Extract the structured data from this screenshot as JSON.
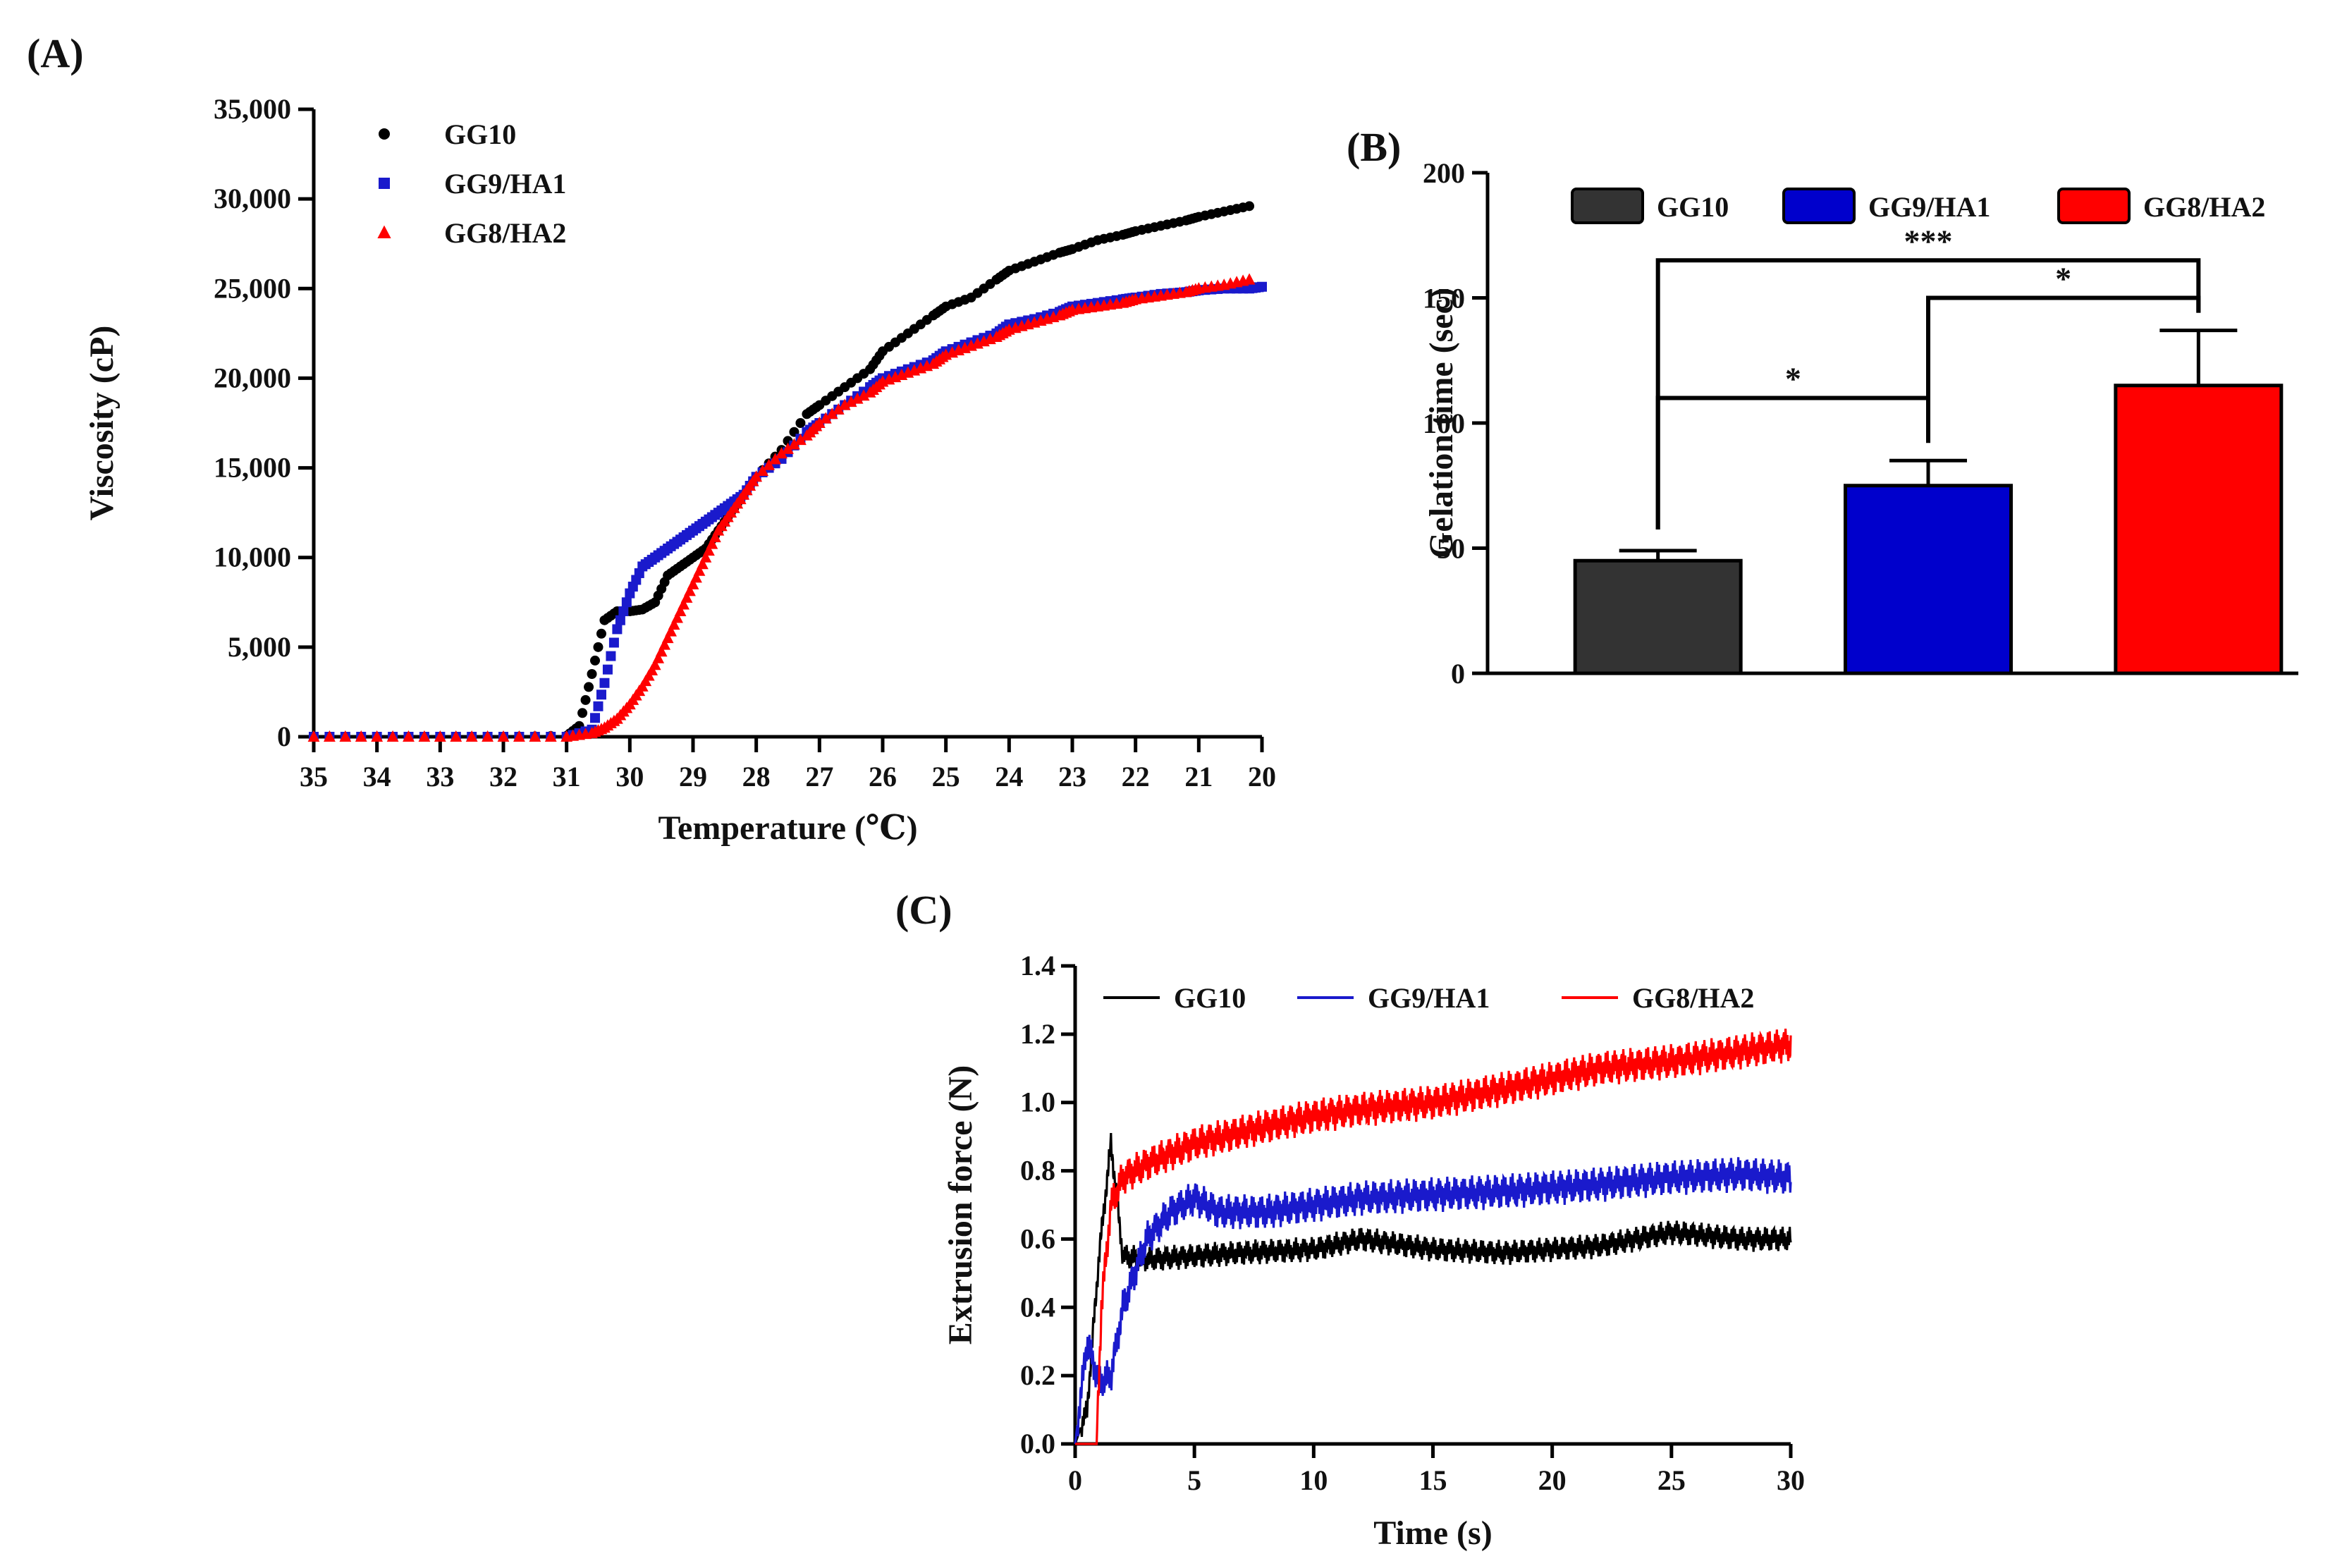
{
  "chart_data": [
    {
      "id": "A",
      "panel_label": "(A)",
      "type": "scatter",
      "title": "",
      "xlabel": "Temperature (℃)",
      "ylabel": "Viscosity (cP)",
      "xlim": [
        35,
        20
      ],
      "ylim": [
        0,
        35000
      ],
      "xticks": [
        35,
        34,
        33,
        32,
        31,
        30,
        29,
        28,
        27,
        26,
        25,
        24,
        23,
        22,
        21,
        20
      ],
      "yticks": [
        0,
        5000,
        10000,
        15000,
        20000,
        25000,
        30000,
        35000
      ],
      "ytick_labels": [
        "0",
        "5,000",
        "10,000",
        "15,000",
        "20,000",
        "25,000",
        "30,000",
        "35,000"
      ],
      "legend_position": "top-left",
      "series": [
        {
          "name": "GG10",
          "color": "#000000",
          "marker": "circle",
          "x": [
            35.0,
            34.0,
            33.0,
            32.0,
            31.0,
            30.8,
            30.6,
            30.4,
            30.2,
            30.0,
            29.8,
            29.6,
            29.4,
            29.2,
            29.0,
            28.8,
            28.6,
            28.4,
            28.2,
            28.0,
            27.6,
            27.2,
            27.0,
            26.6,
            26.2,
            26.0,
            25.6,
            25.2,
            25.0,
            24.6,
            24.2,
            24.0,
            23.6,
            23.2,
            23.0,
            22.6,
            22.2,
            22.0,
            21.6,
            21.2,
            21.0,
            20.6,
            20.2
          ],
          "y": [
            0,
            0,
            0,
            0,
            50,
            600,
            3500,
            6500,
            7000,
            7000,
            7100,
            7500,
            9000,
            9500,
            10000,
            10500,
            11500,
            12500,
            13500,
            14500,
            16000,
            18000,
            18500,
            19500,
            20500,
            21500,
            22500,
            23500,
            24000,
            24500,
            25500,
            26000,
            26500,
            27000,
            27200,
            27700,
            28000,
            28200,
            28500,
            28800,
            29000,
            29300,
            29600
          ]
        },
        {
          "name": "GG9/HA1",
          "color": "#1a1acc",
          "marker": "square",
          "x": [
            35.0,
            34.0,
            33.0,
            32.0,
            31.0,
            30.6,
            30.4,
            30.2,
            30.0,
            29.8,
            29.6,
            29.4,
            29.2,
            29.0,
            28.8,
            28.6,
            28.4,
            28.2,
            28.0,
            27.6,
            27.2,
            27.0,
            26.6,
            26.2,
            26.0,
            25.6,
            25.2,
            25.0,
            24.6,
            24.2,
            24.0,
            23.6,
            23.2,
            23.0,
            22.6,
            22.2,
            22.0,
            21.6,
            21.2,
            21.0,
            20.6,
            20.2,
            20.0
          ],
          "y": [
            0,
            0,
            0,
            0,
            0,
            400,
            3000,
            6000,
            8000,
            9500,
            10000,
            10500,
            11000,
            11500,
            12000,
            12500,
            13000,
            13500,
            14500,
            15500,
            17000,
            17500,
            18500,
            19500,
            20000,
            20500,
            21000,
            21500,
            22000,
            22500,
            23000,
            23300,
            23700,
            24000,
            24200,
            24400,
            24500,
            24700,
            24800,
            24900,
            25000,
            25000,
            25100
          ]
        },
        {
          "name": "GG8/HA2",
          "color": "#ff0000",
          "marker": "triangle",
          "x": [
            35.0,
            34.0,
            33.0,
            32.0,
            31.0,
            30.6,
            30.4,
            30.2,
            30.0,
            29.8,
            29.6,
            29.4,
            29.2,
            29.0,
            28.8,
            28.6,
            28.4,
            28.2,
            28.0,
            27.6,
            27.2,
            27.0,
            26.6,
            26.2,
            26.0,
            25.6,
            25.2,
            25.0,
            24.6,
            24.2,
            24.0,
            23.6,
            23.2,
            23.0,
            22.6,
            22.2,
            22.0,
            21.6,
            21.2,
            21.0,
            20.6,
            20.2
          ],
          "y": [
            0,
            0,
            0,
            0,
            0,
            200,
            500,
            1000,
            1800,
            2800,
            4000,
            5500,
            7000,
            8500,
            10000,
            11500,
            12500,
            13500,
            14500,
            15800,
            16800,
            17500,
            18500,
            19200,
            19800,
            20300,
            20800,
            21300,
            21800,
            22300,
            22700,
            23100,
            23500,
            23800,
            24000,
            24200,
            24400,
            24600,
            24800,
            25000,
            25200,
            25500
          ]
        }
      ]
    },
    {
      "id": "B",
      "panel_label": "(B)",
      "type": "bar",
      "title": "",
      "xlabel": "",
      "ylabel": "Gelation time  (sec)",
      "ylim": [
        0,
        200
      ],
      "yticks": [
        0,
        50,
        100,
        150,
        200
      ],
      "legend_position": "top",
      "categories": [
        "GG10",
        "GG9/HA1",
        "GG8/HA2"
      ],
      "values": [
        45,
        75,
        115
      ],
      "errors": [
        4,
        10,
        22
      ],
      "colors": [
        "#333333",
        "#0000cc",
        "#ff0000"
      ],
      "significance": [
        {
          "from": 0,
          "to": 1,
          "label": "*",
          "level": 110
        },
        {
          "from": 0,
          "to": 2,
          "label": "***",
          "level": 165
        },
        {
          "from": 1,
          "to": 2,
          "label": "*",
          "level": 150
        }
      ]
    },
    {
      "id": "C",
      "panel_label": "(C)",
      "type": "line",
      "title": "",
      "xlabel": "Time (s)",
      "ylabel": "Extrusion force (N)",
      "xlim": [
        0,
        30
      ],
      "ylim": [
        0,
        1.4
      ],
      "xticks": [
        0,
        5,
        10,
        15,
        20,
        25,
        30
      ],
      "yticks": [
        0.0,
        0.2,
        0.4,
        0.6,
        0.8,
        1.0,
        1.2,
        1.4
      ],
      "ytick_labels": [
        "0.0",
        "0.2",
        "0.4",
        "0.6",
        "0.8",
        "1.0",
        "1.2",
        "1.4"
      ],
      "legend_position": "top",
      "series": [
        {
          "name": "GG10",
          "color": "#000000",
          "x": [
            0,
            0.5,
            1.0,
            1.5,
            2.0,
            3,
            5,
            7,
            10,
            12,
            15,
            18,
            20,
            22,
            25,
            28,
            30
          ],
          "y": [
            0,
            0.1,
            0.55,
            0.88,
            0.55,
            0.54,
            0.55,
            0.56,
            0.57,
            0.6,
            0.57,
            0.56,
            0.57,
            0.58,
            0.62,
            0.6,
            0.6
          ],
          "noise": 0.025
        },
        {
          "name": "GG9/HA1",
          "color": "#1a1acc",
          "x": [
            0,
            0.5,
            1.0,
            1.5,
            2.0,
            3,
            4,
            5,
            6,
            8,
            10,
            12,
            15,
            18,
            20,
            22,
            25,
            28,
            30
          ],
          "y": [
            0,
            0.3,
            0.18,
            0.2,
            0.4,
            0.6,
            0.68,
            0.72,
            0.68,
            0.68,
            0.7,
            0.72,
            0.73,
            0.74,
            0.75,
            0.76,
            0.78,
            0.79,
            0.78
          ],
          "noise": 0.035
        },
        {
          "name": "GG8/HA2",
          "color": "#ff0000",
          "x": [
            0,
            0.9,
            1.1,
            1.5,
            2.0,
            3,
            5,
            8,
            10,
            12,
            15,
            18,
            20,
            22,
            25,
            28,
            30
          ],
          "y": [
            0,
            0,
            0.4,
            0.7,
            0.78,
            0.82,
            0.88,
            0.93,
            0.96,
            0.98,
            1.0,
            1.04,
            1.07,
            1.1,
            1.12,
            1.15,
            1.17
          ],
          "noise": 0.035
        }
      ]
    }
  ]
}
